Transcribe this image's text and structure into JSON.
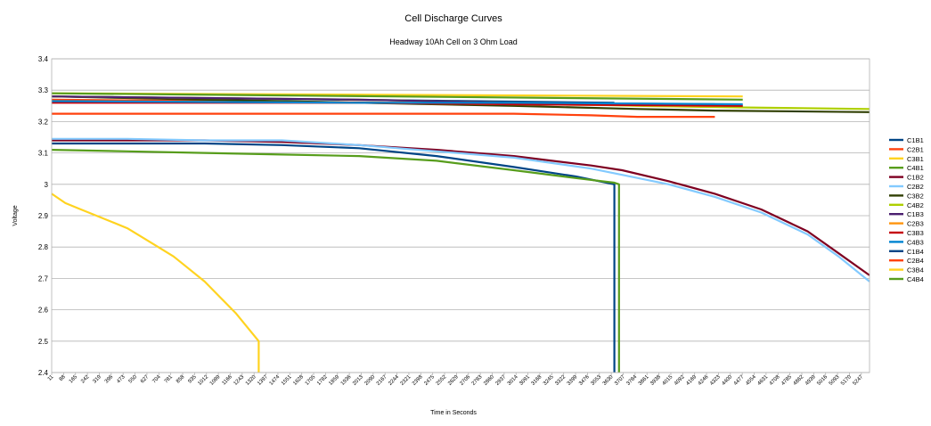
{
  "chart_data": {
    "type": "line",
    "title": "Cell Discharge Curves",
    "subtitle": "Headway 10Ah Cell on 3 Ohm Load",
    "xlabel": "Time in Seconds",
    "ylabel": "Voltage",
    "ylim": [
      2.4,
      3.4
    ],
    "yticks": [
      "2.4",
      "2.5",
      "2.6",
      "2.7",
      "2.8",
      "2.9",
      "3",
      "3.1",
      "3.2",
      "3.3",
      "3.4"
    ],
    "xlim": [
      11,
      5300
    ],
    "xticks": [
      "11",
      "88",
      "165",
      "242",
      "319",
      "396",
      "473",
      "550",
      "627",
      "704",
      "781",
      "858",
      "935",
      "1012",
      "1089",
      "1166",
      "1243",
      "1320",
      "1397",
      "1474",
      "1551",
      "1628",
      "1705",
      "1782",
      "1859",
      "1936",
      "2013",
      "2090",
      "2167",
      "2244",
      "2321",
      "2398",
      "2475",
      "2552",
      "2629",
      "2706",
      "2783",
      "2860",
      "2937",
      "3014",
      "3091",
      "3168",
      "3245",
      "3322",
      "3399",
      "3476",
      "3553",
      "3630",
      "3707",
      "3784",
      "3861",
      "3938",
      "4015",
      "4092",
      "4169",
      "4246",
      "4323",
      "4400",
      "4477",
      "4554",
      "4631",
      "4708",
      "4785",
      "4862",
      "4939",
      "5016",
      "5093",
      "5170",
      "5247"
    ],
    "grid": true,
    "legend_position": "right",
    "series": [
      {
        "name": "C1B1",
        "color": "#004586",
        "x": [
          11,
          3650
        ],
        "y": [
          3.28,
          3.26
        ]
      },
      {
        "name": "C2B1",
        "color": "#ff420e",
        "x": [
          11,
          4480
        ],
        "y": [
          3.27,
          3.25
        ]
      },
      {
        "name": "C3B1",
        "color": "#ffd320",
        "x": [
          11,
          4480
        ],
        "y": [
          3.29,
          3.28
        ]
      },
      {
        "name": "C4B1",
        "color": "#579d1c",
        "x": [
          11,
          4480
        ],
        "y": [
          3.29,
          3.27
        ]
      },
      {
        "name": "C1B2",
        "color": "#7e0021",
        "x": [
          11,
          500,
          1000,
          1500,
          2000,
          2500,
          3000,
          3500,
          3700,
          4000,
          4300,
          4600,
          4900,
          5100,
          5300
        ],
        "y": [
          3.14,
          3.14,
          3.14,
          3.135,
          3.125,
          3.11,
          3.09,
          3.06,
          3.045,
          3.01,
          2.97,
          2.92,
          2.85,
          2.78,
          2.71
        ]
      },
      {
        "name": "C2B2",
        "color": "#83caff",
        "x": [
          11,
          500,
          1000,
          1500,
          2000,
          2500,
          3000,
          3500,
          3700,
          4000,
          4300,
          4600,
          4900,
          5100,
          5300
        ],
        "y": [
          3.145,
          3.145,
          3.14,
          3.14,
          3.125,
          3.105,
          3.085,
          3.05,
          3.03,
          3.0,
          2.96,
          2.91,
          2.84,
          2.77,
          2.69
        ]
      },
      {
        "name": "C3B2",
        "color": "#314004",
        "x": [
          11,
          2000,
          3000,
          3800,
          4300,
          5300
        ],
        "y": [
          3.28,
          3.26,
          3.25,
          3.24,
          3.235,
          3.23
        ]
      },
      {
        "name": "C4B2",
        "color": "#aecf00",
        "x": [
          11,
          2000,
          3000,
          3800,
          4500,
          5300
        ],
        "y": [
          3.28,
          3.27,
          3.26,
          3.25,
          3.245,
          3.24
        ]
      },
      {
        "name": "C1B3",
        "color": "#4b1f6f",
        "x": [
          11,
          2000,
          3000,
          4300
        ],
        "y": [
          3.28,
          3.27,
          3.26,
          3.255
        ]
      },
      {
        "name": "C2B3",
        "color": "#ff950e",
        "x": [
          11,
          2000,
          3000,
          4300
        ],
        "y": [
          3.265,
          3.26,
          3.255,
          3.25
        ]
      },
      {
        "name": "C3B3",
        "color": "#c5000b",
        "x": [
          11,
          2000,
          3000,
          4480
        ],
        "y": [
          3.26,
          3.26,
          3.255,
          3.25
        ]
      },
      {
        "name": "C4B3",
        "color": "#0084d1",
        "x": [
          11,
          2000,
          3000,
          4480
        ],
        "y": [
          3.265,
          3.26,
          3.26,
          3.255
        ]
      },
      {
        "name": "C1B4",
        "color": "#004586",
        "x": [
          11,
          500,
          1000,
          1500,
          2000,
          2500,
          3000,
          3400,
          3650,
          3650
        ],
        "y": [
          3.13,
          3.13,
          3.13,
          3.125,
          3.115,
          3.09,
          3.055,
          3.025,
          3.0,
          2.4
        ]
      },
      {
        "name": "C2B4",
        "color": "#ff420e",
        "x": [
          11,
          1000,
          2000,
          3000,
          3500,
          3800,
          4300
        ],
        "y": [
          3.225,
          3.225,
          3.225,
          3.225,
          3.22,
          3.215,
          3.215
        ]
      },
      {
        "name": "C3B4",
        "color": "#ffd320",
        "x": [
          11,
          100,
          200,
          300,
          400,
          500,
          600,
          700,
          800,
          900,
          1000,
          1100,
          1200,
          1300,
          1350,
          1350
        ],
        "y": [
          2.97,
          2.94,
          2.92,
          2.9,
          2.88,
          2.86,
          2.83,
          2.8,
          2.77,
          2.73,
          2.69,
          2.64,
          2.59,
          2.53,
          2.5,
          2.4
        ]
      },
      {
        "name": "C4B4",
        "color": "#579d1c",
        "x": [
          11,
          500,
          1000,
          1500,
          2000,
          2500,
          3000,
          3400,
          3650,
          3680,
          3680
        ],
        "y": [
          3.11,
          3.105,
          3.1,
          3.095,
          3.09,
          3.075,
          3.045,
          3.02,
          3.005,
          3.0,
          2.4
        ]
      }
    ]
  }
}
